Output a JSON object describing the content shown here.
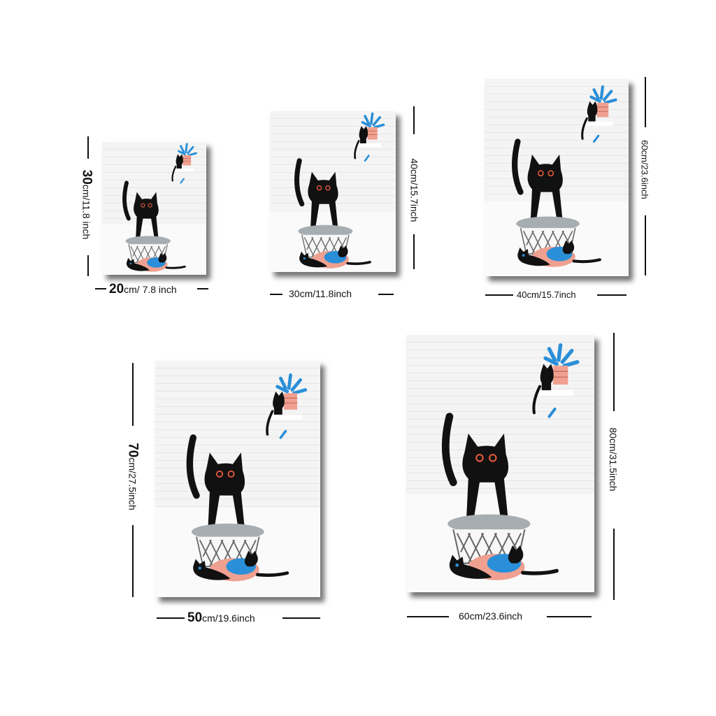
{
  "sizes": [
    {
      "width_cm": "20",
      "width_rest": "cm/ 7.8 inch",
      "height_cm": "30",
      "height_rest": "cm/11.8 inch"
    },
    {
      "width_label": "30cm/11.8inch",
      "height_label": "40cm/15.7inch"
    },
    {
      "width_label": "40cm/15.7inch",
      "height_label": "60cm/23.6inch"
    },
    {
      "width_cm": "50",
      "width_rest": "cm/19.6inch",
      "height_cm": "70",
      "height_rest": "cm/27.5inch"
    },
    {
      "width_label": "60cm/23.6inch",
      "height_label": "80cm/31.5inch"
    }
  ],
  "colors": {
    "accent_blue": "#2a8fd8",
    "accent_pink": "#f0a090",
    "cat": "#111111",
    "stool": "#a7aeb2"
  }
}
